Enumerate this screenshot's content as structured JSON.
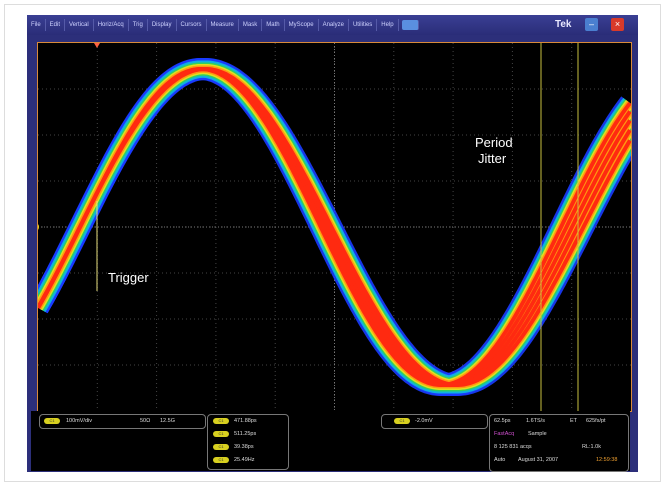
{
  "menu": [
    "File",
    "Edit",
    "Vertical",
    "Horiz/Acq",
    "Trig",
    "Display",
    "Cursors",
    "Measure",
    "Mask",
    "Math",
    "MyScope",
    "Analyze",
    "Utilities",
    "Help"
  ],
  "brand": "Tek",
  "annotations": {
    "trigger": "Trigger",
    "period_line1": "Period",
    "period_line2": "Jitter"
  },
  "channel": {
    "label": "C1",
    "scale": "100mV/div",
    "impedance": "50Ω",
    "bandwidth": "12.5G"
  },
  "measurements": [
    {
      "label": "C1",
      "value": "471.88ps"
    },
    {
      "label": "C1",
      "value": "511.25ps"
    },
    {
      "label": "C1",
      "value": "39.38ps"
    },
    {
      "label": "C1",
      "value": "25.49Hz"
    }
  ],
  "trigger": {
    "label": "C1",
    "level": "-2.0mV"
  },
  "acq": {
    "timebase": "62.5ps",
    "sample_rate": "1.6TS/s",
    "et": "ET",
    "pts": "625fs/pt",
    "mode": "FastAcq",
    "sample": "Sample",
    "acqs": "8 125 831 acqs",
    "rl": "RL:1.0k",
    "auto": "Auto",
    "date": "August 31, 2007",
    "time": "12:59:38"
  },
  "colors": {
    "menubar": "#2c2f7a",
    "waveform_core": "#ff2a10",
    "accent": "#d8d020"
  }
}
